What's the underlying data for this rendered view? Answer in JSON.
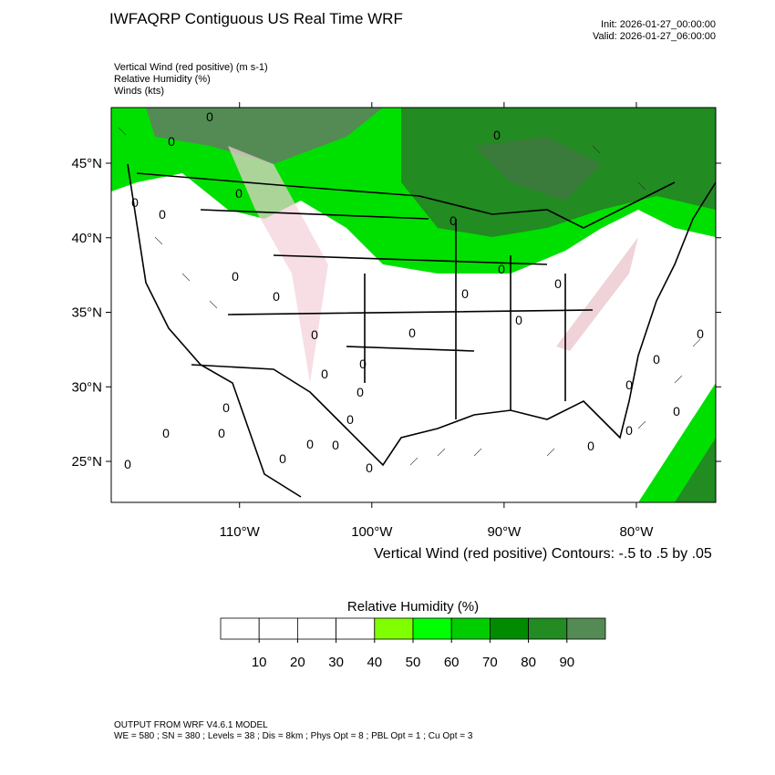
{
  "header": {
    "title": "IWFAQRP Contiguous US Real Time WRF",
    "init": "Init: 2026-01-27_00:00:00",
    "valid": "Valid: 2026-01-27_06:00:00"
  },
  "fields": [
    "Vertical Wind (red positive)   (m s-1)",
    "Relative Humidity   (%)",
    "Winds   (kts)"
  ],
  "map": {
    "lonlim": [
      -119.7,
      -74.0
    ],
    "latlim": [
      22.25,
      48.73
    ],
    "lon_ticks": [
      {
        "value": -110,
        "label": "110°W"
      },
      {
        "value": -100,
        "label": "100°W"
      },
      {
        "value": -90,
        "label": "90°W"
      },
      {
        "value": -80,
        "label": "80°W"
      }
    ],
    "lat_ticks": [
      {
        "value": 45,
        "label": "45°N"
      },
      {
        "value": 40,
        "label": "40°N"
      },
      {
        "value": 35,
        "label": "35°N"
      },
      {
        "value": 30,
        "label": "30°N"
      },
      {
        "value": 25,
        "label": "25°N"
      }
    ],
    "contour_label": "0",
    "contour_note": "Vertical Wind (red positive) Contours: -.5 to .5 by .05"
  },
  "colorbar": {
    "title": "Relative Humidity  (%)",
    "levels": [
      10,
      20,
      30,
      40,
      50,
      60,
      70,
      80,
      90
    ],
    "colors": [
      "#ffffff",
      "#ffffff",
      "#ffffff",
      "#ffffff",
      "#80ff00",
      "#00ff00",
      "#00cd00",
      "#008b00",
      "#228b22",
      "#548b54"
    ]
  },
  "footer": [
    "OUTPUT FROM WRF V4.6.1 MODEL",
    "WE = 580 ; SN = 380 ; Levels = 38 ; Dis = 8km ; Phys Opt = 8 ; PBL Opt = 1 ; Cu Opt = 3"
  ]
}
